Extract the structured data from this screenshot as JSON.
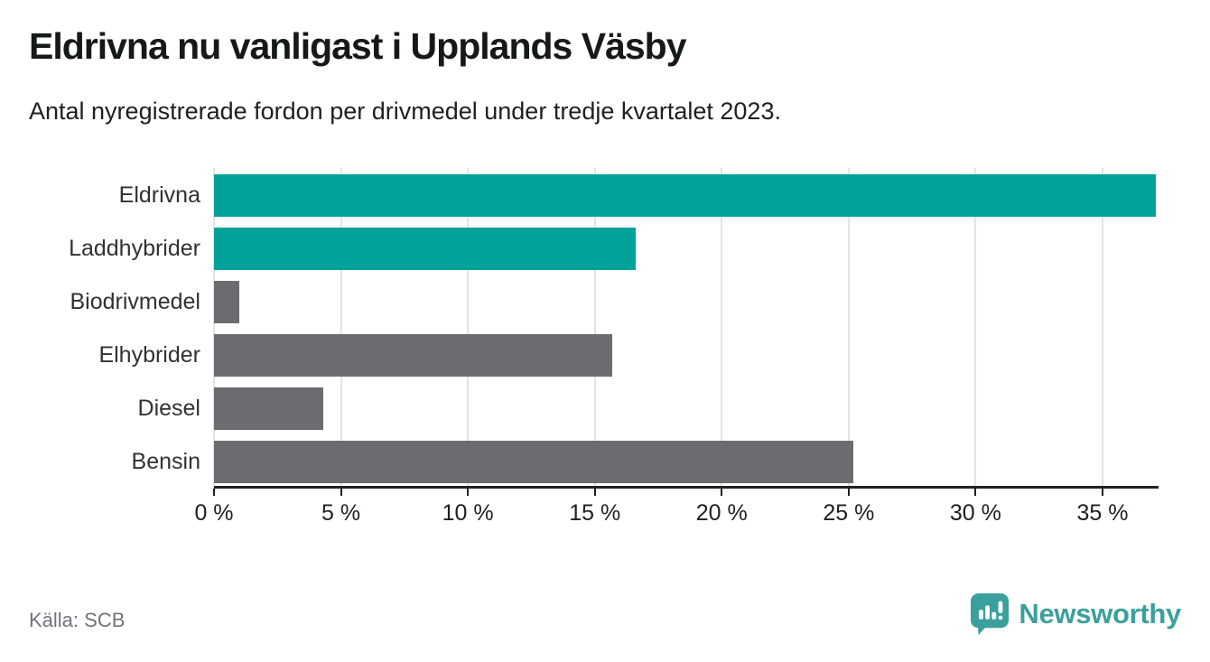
{
  "header": {
    "title": "Eldrivna nu vanligast i Upplands Väsby",
    "subtitle": "Antal nyregistrerade fordon per drivmedel under tredje kvartalet 2023."
  },
  "chart_data": {
    "type": "bar",
    "orientation": "horizontal",
    "title": "Eldrivna nu vanligast i Upplands Väsby",
    "categories": [
      "Eldrivna",
      "Laddhybrider",
      "Biodrivmedel",
      "Elhybrider",
      "Diesel",
      "Bensin"
    ],
    "values": [
      37.1,
      16.6,
      1.0,
      15.7,
      4.3,
      25.2
    ],
    "unit": "%",
    "bar_colors": [
      "#00a29a",
      "#00a29a",
      "#6b6b70",
      "#6b6b70",
      "#6b6b70",
      "#6b6b70"
    ],
    "highlight_color": "#00a29a",
    "default_color": "#6b6b70",
    "xlim": [
      0,
      37.1
    ],
    "xticks": [
      0,
      5,
      10,
      15,
      20,
      25,
      30,
      35
    ],
    "xtick_labels": [
      "0 %",
      "5 %",
      "10 %",
      "15 %",
      "20 %",
      "25 %",
      "30 %",
      "35 %"
    ],
    "grid": true,
    "grid_color": "#e3e3e3",
    "axis_color": "#1f2122",
    "legend": "none"
  },
  "footer": {
    "source": "Källa: SCB",
    "brand": "Newsworthy",
    "brand_color": "#3ba09b",
    "logo_icon": "newsworthy-speech-bubble-bar-chart-icon"
  }
}
